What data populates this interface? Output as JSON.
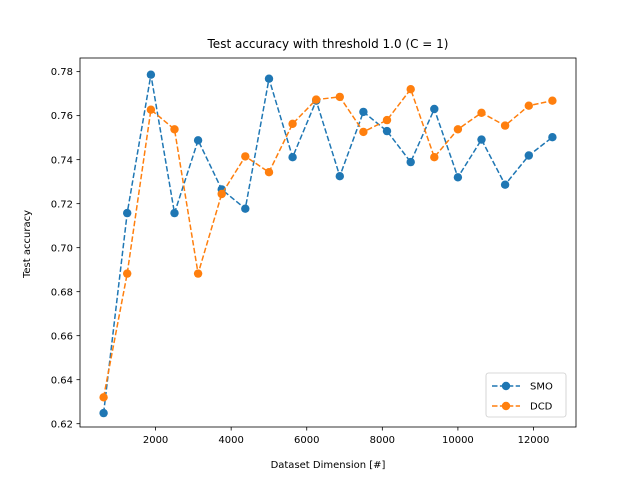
{
  "chart_data": {
    "type": "line",
    "title": "Test accuracy with threshold 1.0 (C = 1)",
    "xlabel": "Dataset Dimension [#]",
    "ylabel": "Test accuracy",
    "xlim": [
      0,
      13125
    ],
    "ylim": [
      0.6185,
      0.7862
    ],
    "xticks": [
      2000,
      4000,
      6000,
      8000,
      10000,
      12000
    ],
    "yticks": [
      0.62,
      0.64,
      0.66,
      0.68,
      0.7,
      0.72,
      0.74,
      0.76,
      0.78
    ],
    "ytick_labels": [
      "0.62",
      "0.64",
      "0.66",
      "0.68",
      "0.70",
      "0.72",
      "0.74",
      "0.76",
      "0.78"
    ],
    "grid": false,
    "legend_position": "lower-right",
    "x": [
      625,
      1250,
      1875,
      2500,
      3125,
      3750,
      4375,
      5000,
      5625,
      6250,
      6875,
      7500,
      8125,
      8750,
      9375,
      10000,
      10625,
      11250,
      11875,
      12500
    ],
    "series": [
      {
        "name": "SMO",
        "color": "#1f77b4",
        "values": [
          0.6248,
          0.7157,
          0.7786,
          0.7157,
          0.7488,
          0.7265,
          0.7177,
          0.7768,
          0.7411,
          0.7668,
          0.7325,
          0.7617,
          0.753,
          0.7389,
          0.763,
          0.732,
          0.7491,
          0.7286,
          0.7419,
          0.7502
        ]
      },
      {
        "name": "DCD",
        "color": "#ff7f0e",
        "values": [
          0.632,
          0.6882,
          0.7627,
          0.7538,
          0.6882,
          0.7244,
          0.7415,
          0.7343,
          0.7563,
          0.7673,
          0.7685,
          0.7526,
          0.758,
          0.772,
          0.7411,
          0.7538,
          0.7613,
          0.7555,
          0.7645,
          0.7668
        ]
      }
    ]
  }
}
